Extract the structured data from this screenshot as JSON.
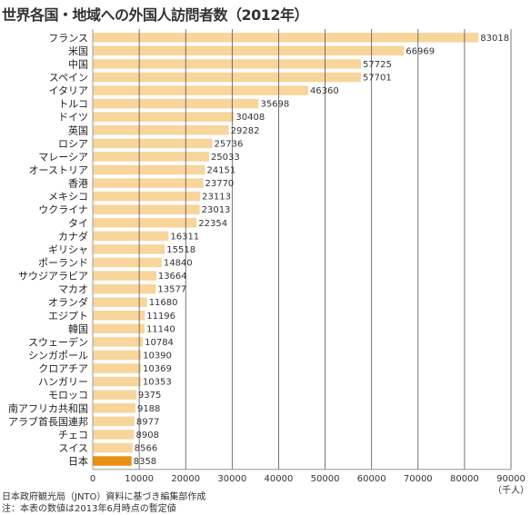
{
  "title": "世界各国・地域への外国人訪問者数（2012年）",
  "notes": [
    "日本政府観光局（JNTO）資料に基づき編集部作成",
    "注：本表の数値は2013年6月時点の暫定値"
  ],
  "colors": {
    "bar": "#f7d59b",
    "highlight": "#e8900f",
    "grid": "#555555",
    "axis": "#888888"
  },
  "chart_data": {
    "type": "bar",
    "orientation": "horizontal",
    "title": "世界各国・地域への外国人訪問者数（2012年）",
    "unit_label": "（千人）",
    "xlim": [
      0,
      90000
    ],
    "ticks": [
      0,
      10000,
      20000,
      30000,
      40000,
      50000,
      60000,
      70000,
      80000,
      90000
    ],
    "highlight": "日本",
    "categories": [
      "フランス",
      "米国",
      "中国",
      "スペイン",
      "イタリア",
      "トルコ",
      "ドイツ",
      "英国",
      "ロシア",
      "マレーシア",
      "オーストリア",
      "香港",
      "メキシコ",
      "ウクライナ",
      "タイ",
      "カナダ",
      "ギリシャ",
      "ポーランド",
      "サウジアラビア",
      "マカオ",
      "オランダ",
      "エジプト",
      "韓国",
      "スウェーデン",
      "シンガポール",
      "クロアチア",
      "ハンガリー",
      "モロッコ",
      "南アフリカ共和国",
      "アラブ首長国連邦",
      "チェコ",
      "スイス",
      "日本"
    ],
    "values": [
      83018,
      66969,
      57725,
      57701,
      46360,
      35698,
      30408,
      29282,
      25736,
      25033,
      24151,
      23770,
      23113,
      23013,
      22354,
      16311,
      15518,
      14840,
      13664,
      13577,
      11680,
      11196,
      11140,
      10784,
      10390,
      10369,
      10353,
      9375,
      9188,
      8977,
      8908,
      8566,
      8358
    ]
  }
}
